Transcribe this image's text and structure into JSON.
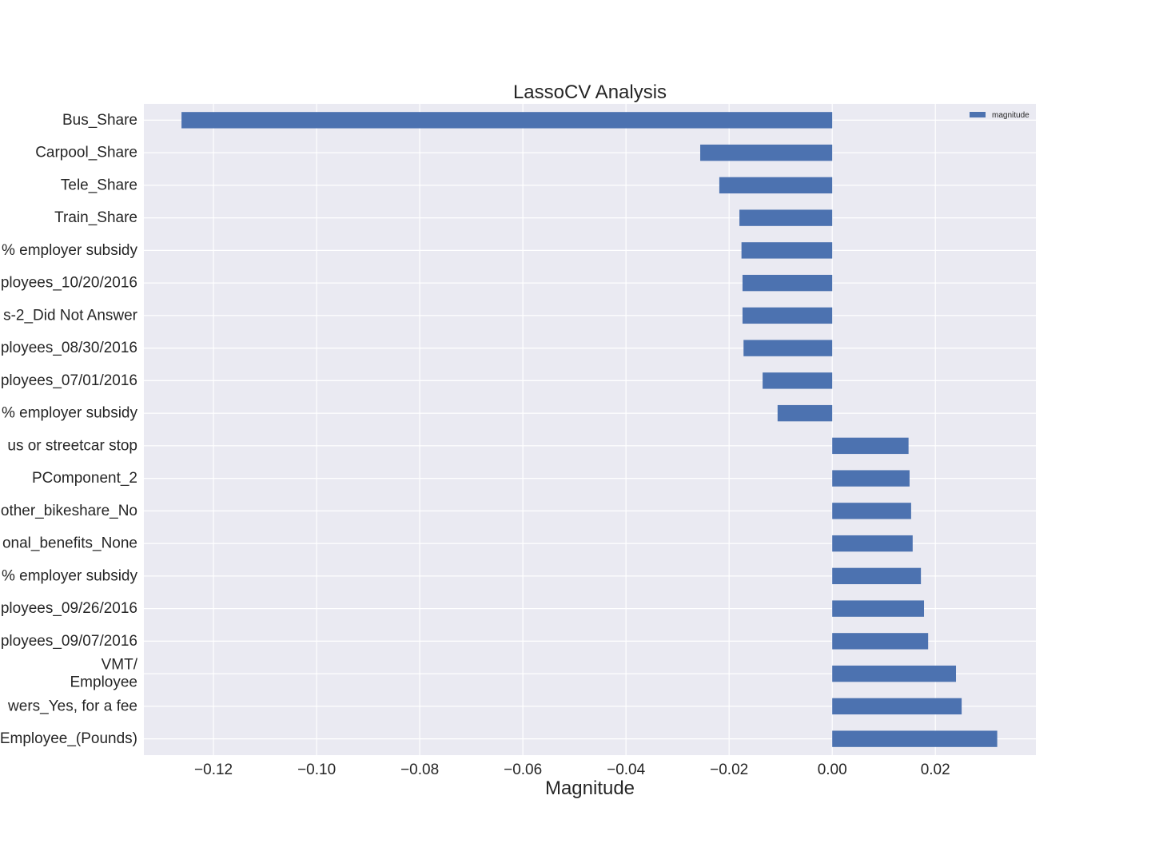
{
  "colors": {
    "plot_background": "#EAEAF2",
    "bar": "#4C72B0",
    "grid": "#FFFFFF",
    "text": "#262626"
  },
  "chart_data": {
    "type": "bar",
    "orientation": "horizontal",
    "title": "LassoCV Analysis",
    "xlabel": "Magnitude",
    "ylabel": "",
    "xlim": [
      -0.1335,
      0.0395
    ],
    "xticks": [
      -0.12,
      -0.1,
      -0.08,
      -0.06,
      -0.04,
      -0.02,
      0.0,
      0.02
    ],
    "xtick_labels": [
      "−0.12",
      "−0.10",
      "−0.08",
      "−0.06",
      "−0.04",
      "−0.02",
      "0.00",
      "0.02"
    ],
    "grid": true,
    "legend": {
      "position": "top-right",
      "entries": [
        "magnitude"
      ]
    },
    "categories": [
      [
        "Bus_Share"
      ],
      [
        "Carpool_Share"
      ],
      [
        "Tele_Share"
      ],
      [
        "Train_Share"
      ],
      [
        "% employer subsidy"
      ],
      [
        "ployees_10/20/2016"
      ],
      [
        "s-2_Did Not Answer"
      ],
      [
        "ployees_08/30/2016"
      ],
      [
        "ployees_07/01/2016"
      ],
      [
        "% employer subsidy"
      ],
      [
        "us or streetcar stop"
      ],
      [
        "PComponent_2"
      ],
      [
        "other_bikeshare_No"
      ],
      [
        "onal_benefits_None"
      ],
      [
        "% employer subsidy"
      ],
      [
        "ployees_09/26/2016"
      ],
      [
        "ployees_09/07/2016"
      ],
      [
        "VMT/",
        "Employee"
      ],
      [
        "wers_Yes, for a fee"
      ],
      [
        "Employee_(Pounds)"
      ]
    ],
    "series": [
      {
        "name": "magnitude",
        "values": [
          -0.1262,
          -0.0256,
          -0.0219,
          -0.018,
          -0.0176,
          -0.0174,
          -0.0174,
          -0.0172,
          -0.0135,
          -0.0106,
          0.0148,
          0.015,
          0.0153,
          0.0156,
          0.0172,
          0.0178,
          0.0186,
          0.024,
          0.0251,
          0.032
        ]
      }
    ]
  }
}
